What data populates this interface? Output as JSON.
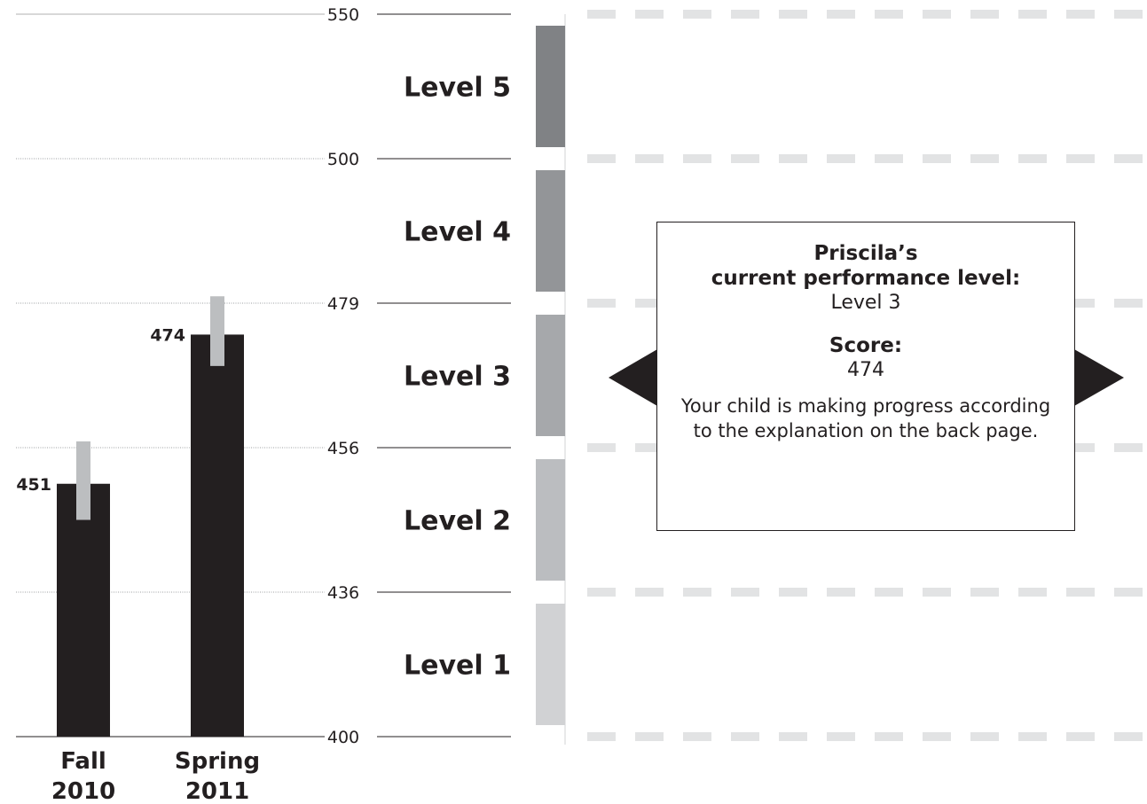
{
  "chart_data": {
    "type": "bar",
    "categories": [
      {
        "line1": "Fall",
        "line2": "2010"
      },
      {
        "line1": "Spring",
        "line2": "2011"
      }
    ],
    "values": [
      451,
      474
    ],
    "error_ranges": [
      [
        446,
        457
      ],
      [
        469,
        480
      ]
    ],
    "ylim": [
      400,
      550
    ],
    "y_ticks": [
      400,
      436,
      456,
      479,
      500,
      550
    ],
    "levels": [
      {
        "label": "Level 1",
        "from": 400,
        "to": 436,
        "color": "#d1d2d4"
      },
      {
        "label": "Level 2",
        "from": 436,
        "to": 456,
        "color": "#bbbdc0"
      },
      {
        "label": "Level 3",
        "from": 456,
        "to": 479,
        "color": "#a6a8ab"
      },
      {
        "label": "Level 4",
        "from": 479,
        "to": 500,
        "color": "#939598"
      },
      {
        "label": "Level 5",
        "from": 500,
        "to": 550,
        "color": "#808285"
      }
    ],
    "bar_color": "#231f20",
    "error_color": "#bcbec0",
    "grid": true
  },
  "callout": {
    "title_line1": "Priscila’s",
    "title_line2": "current performance level:",
    "level": "Level 3",
    "score_title": "Score:",
    "score": "474",
    "message": "Your child is making progress according to the explanation on the back page."
  }
}
